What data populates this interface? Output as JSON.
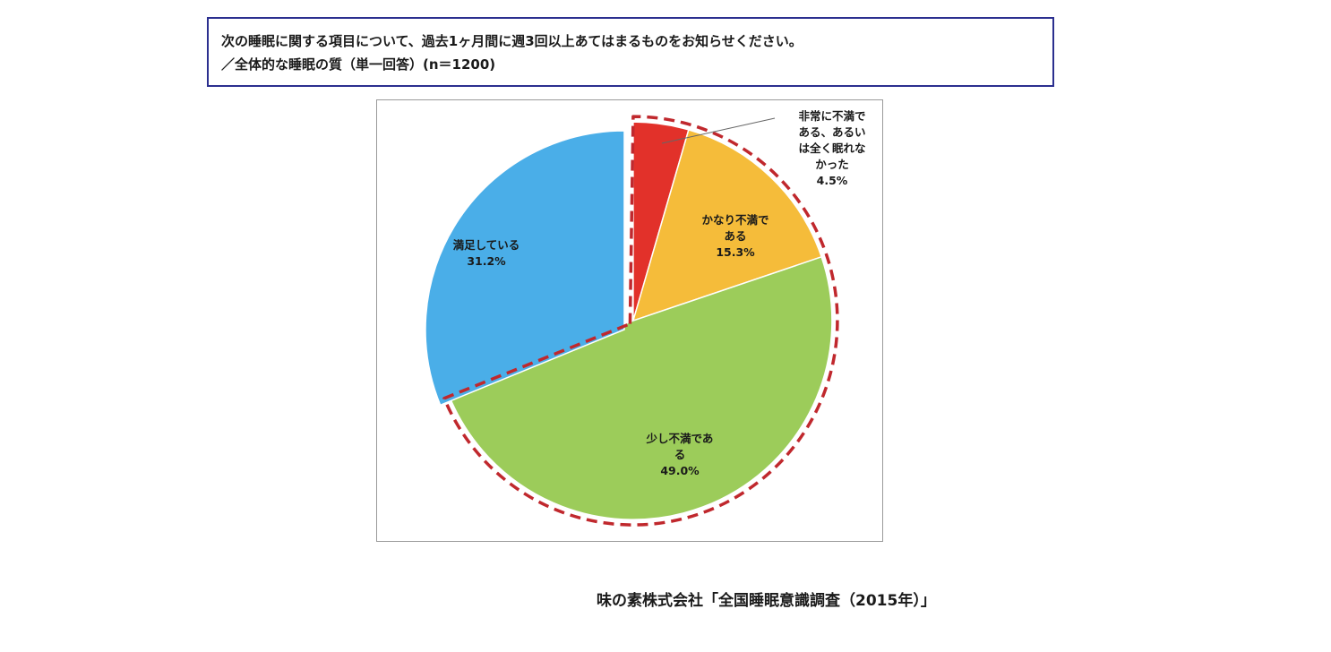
{
  "question": {
    "line1": "次の睡眠に関する項目について、過去1ヶ月間に週3回以上あてはまるものをお知らせください。",
    "line2": "／全体的な睡眠の質（単一回答）(n＝1200)"
  },
  "source": "味の素株式会社「全国睡眠意識調査（2015年）」",
  "colors": {
    "frame_border": "#2b2f8f",
    "highlight_dash": "#c0282d"
  },
  "chart_data": {
    "type": "pie",
    "unit": "%",
    "slices": [
      {
        "label_lines": [
          "非常に不満で",
          "ある、あるい",
          "は全く眠れな",
          "かった"
        ],
        "value": 4.5,
        "value_label": "4.5%",
        "color": "#e2312a",
        "exploded": true
      },
      {
        "label_lines": [
          "かなり不満で",
          "ある"
        ],
        "value": 15.3,
        "value_label": "15.3%",
        "color": "#f5bc3a",
        "exploded": true
      },
      {
        "label_lines": [
          "少し不満であ",
          "る"
        ],
        "value": 49.0,
        "value_label": "49.0%",
        "color": "#9ccc5a",
        "exploded": true
      },
      {
        "label_lines": [
          "満足している"
        ],
        "value": 31.2,
        "value_label": "31.2%",
        "color": "#4aaee8",
        "exploded": false
      }
    ],
    "highlight": "dissatisfied-group-dashed-outline"
  }
}
